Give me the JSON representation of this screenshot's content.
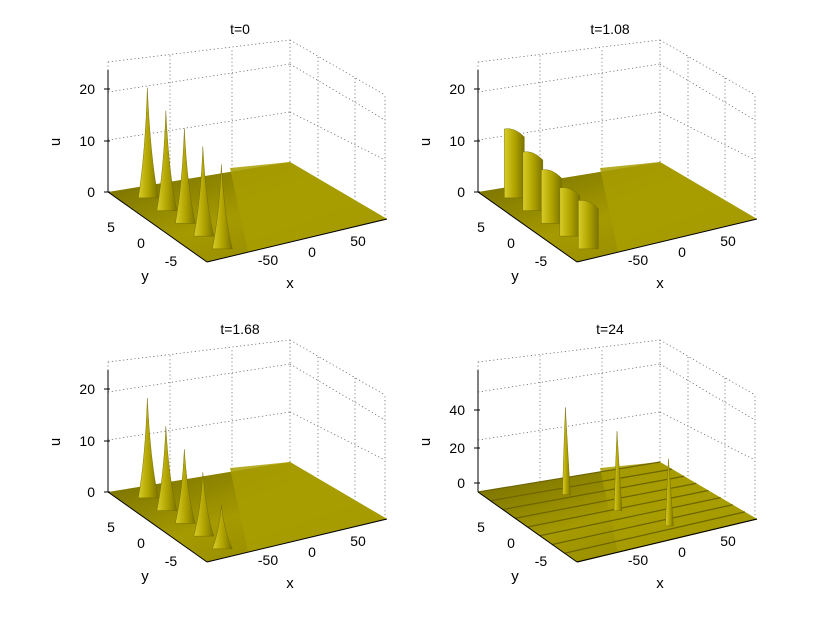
{
  "chart_data": [
    {
      "type": "surface",
      "title": "t=0",
      "xlabel": "x",
      "ylabel": "y",
      "zlabel": "u",
      "x_ticks": [
        -50,
        0,
        50
      ],
      "y_ticks": [
        5,
        0,
        -5
      ],
      "z_ticks": [
        0,
        10,
        20
      ],
      "zlim": [
        0,
        20
      ],
      "peaks": [
        {
          "x": -40,
          "y": 6,
          "u": 21
        },
        {
          "x": -40,
          "y": 3,
          "u": 19
        },
        {
          "x": -40,
          "y": 0,
          "u": 18
        },
        {
          "x": -40,
          "y": -3,
          "u": 17
        },
        {
          "x": -40,
          "y": -6,
          "u": 16
        }
      ],
      "surface_color": "#b8ab00"
    },
    {
      "type": "surface",
      "title": "t=1.08",
      "xlabel": "x",
      "ylabel": "y",
      "zlabel": "u",
      "x_ticks": [
        -50,
        0,
        50
      ],
      "y_ticks": [
        5,
        0,
        -5
      ],
      "z_ticks": [
        0,
        10,
        20
      ],
      "zlim": [
        0,
        20
      ],
      "peaks": [
        {
          "x": -40,
          "y": 6,
          "u": 13
        },
        {
          "x": -40,
          "y": 3,
          "u": 11
        },
        {
          "x": -40,
          "y": 0,
          "u": 10
        },
        {
          "x": -40,
          "y": -3,
          "u": 9
        },
        {
          "x": -40,
          "y": -6,
          "u": 9
        }
      ],
      "surface_color": "#b8ab00"
    },
    {
      "type": "surface",
      "title": "t=1.68",
      "xlabel": "x",
      "ylabel": "y",
      "zlabel": "u",
      "x_ticks": [
        -50,
        0,
        50
      ],
      "y_ticks": [
        5,
        0,
        -5
      ],
      "z_ticks": [
        0,
        10,
        20
      ],
      "zlim": [
        0,
        20
      ],
      "peaks": [
        {
          "x": -40,
          "y": 6,
          "u": 19
        },
        {
          "x": -40,
          "y": 3,
          "u": 16
        },
        {
          "x": -40,
          "y": 0,
          "u": 14
        },
        {
          "x": -40,
          "y": -3,
          "u": 12
        },
        {
          "x": -40,
          "y": -6,
          "u": 8
        }
      ],
      "surface_color": "#b8ab00"
    },
    {
      "type": "surface",
      "title": "t=24",
      "xlabel": "x",
      "ylabel": "y",
      "zlabel": "u",
      "x_ticks": [
        -50,
        0,
        50
      ],
      "y_ticks": [
        5,
        0,
        -5
      ],
      "z_ticks": [
        0,
        20,
        40
      ],
      "zlim": [
        0,
        55
      ],
      "peaks": [
        {
          "x": -10,
          "y": 5,
          "u": 55
        },
        {
          "x": 5,
          "y": 0,
          "u": 50
        },
        {
          "x": 20,
          "y": -5,
          "u": 42
        }
      ],
      "surface_color": "#b8ab00"
    }
  ]
}
